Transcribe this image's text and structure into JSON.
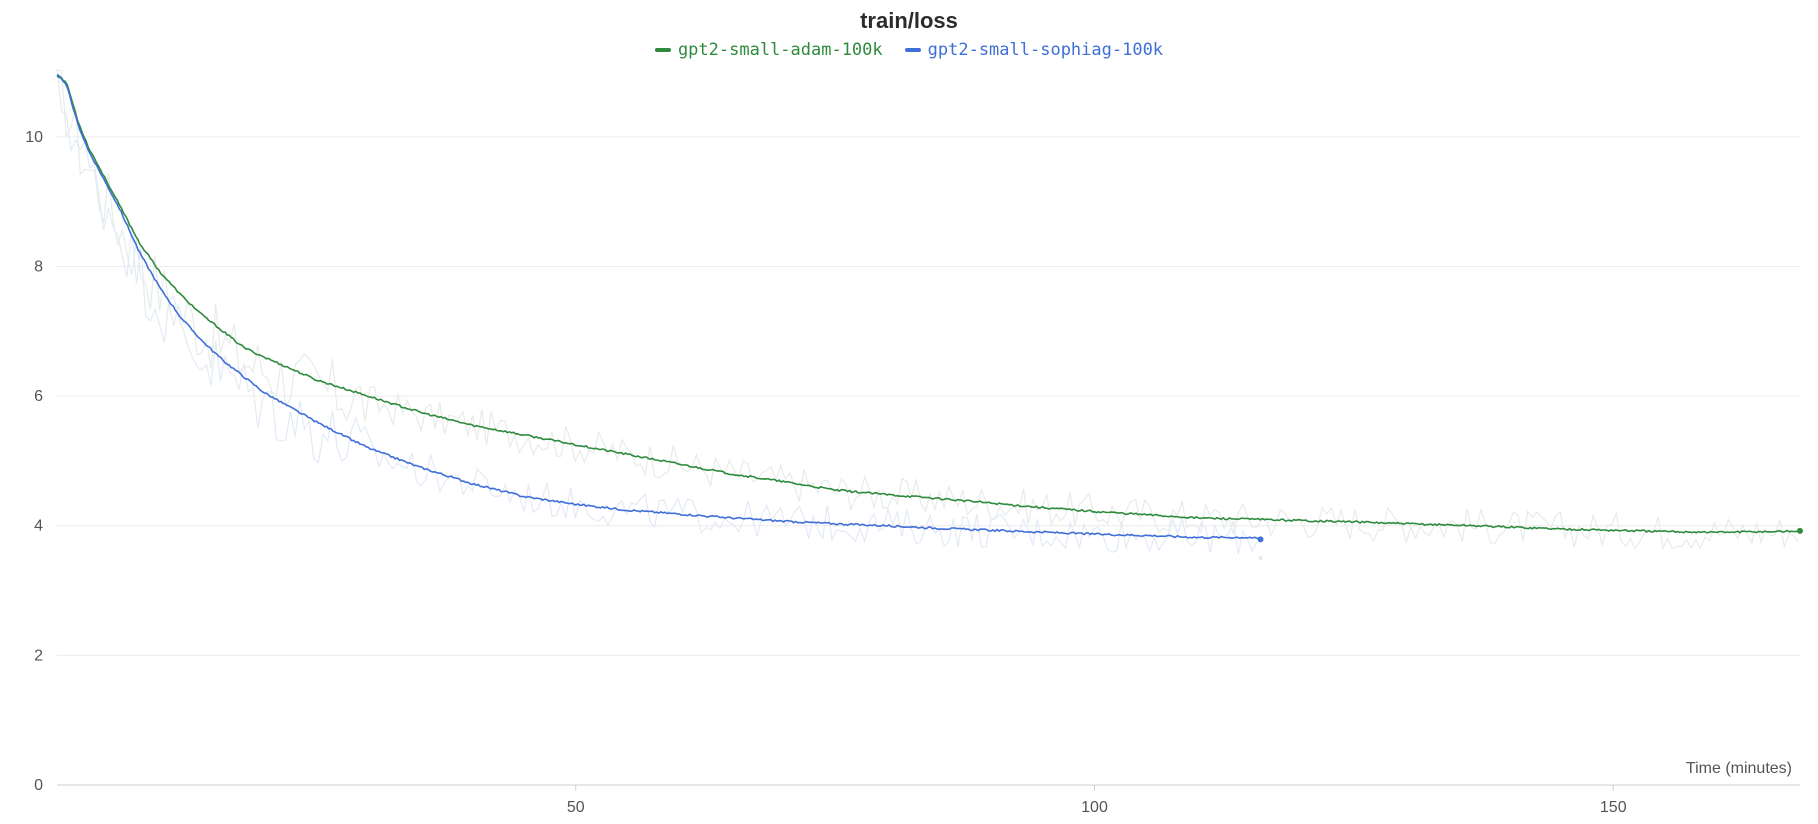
{
  "chart_data": {
    "type": "line",
    "title": "train/loss",
    "xlabel": "Time (minutes)",
    "ylabel": "",
    "xlim": [
      0,
      168
    ],
    "ylim": [
      0,
      11
    ],
    "x_ticks": [
      50,
      100,
      150
    ],
    "y_ticks": [
      0,
      2,
      4,
      6,
      8,
      10
    ],
    "grid": "horizontal",
    "legend_position": "top-center",
    "series": [
      {
        "name": "gpt2-small-adam-100k",
        "color": "#2e8b3e",
        "raw_color": "#e6ece8",
        "x": [
          0,
          0.5,
          1,
          2,
          3,
          4,
          5,
          6,
          8,
          10,
          12,
          14,
          16,
          18,
          20,
          25,
          30,
          35,
          40,
          45,
          50,
          55,
          60,
          65,
          70,
          75,
          80,
          85,
          90,
          95,
          100,
          105,
          110,
          115,
          120,
          125,
          130,
          135,
          140,
          145,
          150,
          155,
          160,
          165,
          168
        ],
        "y": [
          10.95,
          10.9,
          10.8,
          10.25,
          9.85,
          9.55,
          9.25,
          8.95,
          8.35,
          7.9,
          7.55,
          7.25,
          7.0,
          6.75,
          6.6,
          6.25,
          6.0,
          5.75,
          5.55,
          5.4,
          5.25,
          5.1,
          4.95,
          4.8,
          4.68,
          4.55,
          4.48,
          4.42,
          4.35,
          4.28,
          4.22,
          4.17,
          4.12,
          4.1,
          4.08,
          4.06,
          4.03,
          4.01,
          3.98,
          3.95,
          3.93,
          3.91,
          3.9,
          3.91,
          3.92
        ]
      },
      {
        "name": "gpt2-small-sophiag-100k",
        "color": "#3f6fd8",
        "raw_color": "#e3eaf6",
        "x": [
          0,
          0.5,
          1,
          2,
          3,
          4,
          5,
          6,
          8,
          10,
          12,
          14,
          16,
          18,
          20,
          25,
          30,
          35,
          40,
          45,
          50,
          55,
          60,
          65,
          70,
          75,
          80,
          85,
          90,
          95,
          100,
          105,
          110,
          115,
          116
        ],
        "y": [
          10.95,
          10.9,
          10.75,
          10.2,
          9.8,
          9.5,
          9.2,
          8.9,
          8.2,
          7.65,
          7.2,
          6.85,
          6.55,
          6.3,
          6.05,
          5.6,
          5.2,
          4.9,
          4.65,
          4.45,
          4.33,
          4.24,
          4.18,
          4.12,
          4.07,
          4.03,
          4.0,
          3.96,
          3.93,
          3.9,
          3.87,
          3.85,
          3.82,
          3.82,
          3.79
        ]
      }
    ]
  }
}
